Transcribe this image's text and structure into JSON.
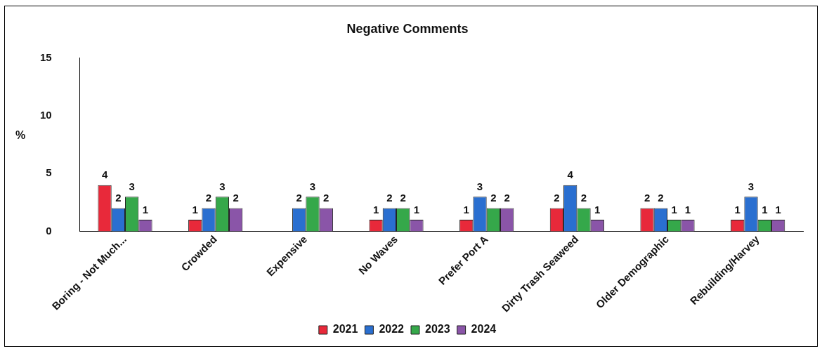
{
  "chart_data": {
    "type": "bar",
    "title": "Negative Comments",
    "ylabel": "%",
    "categories": [
      "Boring - Not Much...",
      "Crowded",
      "Expensive",
      "No Waves",
      "Prefer Port A",
      "Dirty Trash Seaweed",
      "Older Demographic",
      "Rebuilding/Harvey"
    ],
    "series": [
      {
        "name": "2021",
        "color": "#e8293a",
        "values": [
          4,
          1,
          null,
          1,
          1,
          2,
          2,
          1
        ]
      },
      {
        "name": "2022",
        "color": "#2a6fd0",
        "values": [
          2,
          2,
          2,
          2,
          3,
          4,
          2,
          3
        ]
      },
      {
        "name": "2023",
        "color": "#35a84a",
        "values": [
          3,
          3,
          3,
          2,
          2,
          2,
          1,
          1
        ]
      },
      {
        "name": "2024",
        "color": "#8a55a8",
        "values": [
          1,
          2,
          2,
          1,
          2,
          1,
          1,
          1
        ]
      }
    ],
    "data_labels": true,
    "ylim": [
      0,
      15
    ],
    "yticks": [
      0,
      5,
      10,
      15
    ],
    "grid": false,
    "legend": "bottom"
  }
}
